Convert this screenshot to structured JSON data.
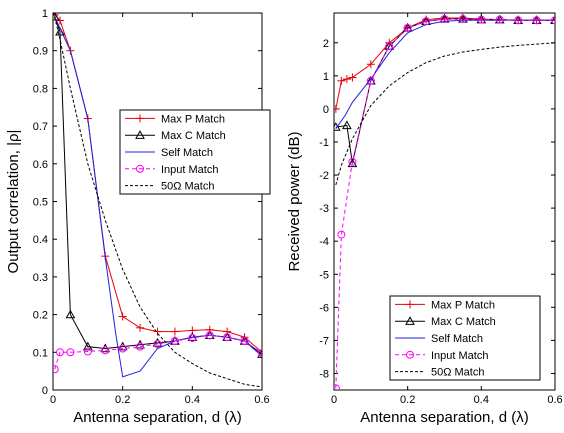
{
  "chart_data": [
    {
      "type": "line",
      "xlabel": "Antenna separation, d (λ)",
      "ylabel": "Output correlation, |ρ|",
      "xlim": [
        0,
        0.6
      ],
      "ylim": [
        0,
        1
      ],
      "xticks": [
        0,
        0.2,
        0.4,
        0.6
      ],
      "xtick_labels": [
        "0",
        "0.2",
        "0.4",
        "0.6"
      ],
      "yticks": [
        0,
        0.1,
        0.2,
        0.3,
        0.4,
        0.5,
        0.6,
        0.7,
        0.8,
        0.9,
        1
      ],
      "ytick_labels": [
        "0",
        "0.1",
        "0.2",
        "0.3",
        "0.4",
        "0.5",
        "0.6",
        "0.7",
        "0.8",
        "0.9",
        "1"
      ],
      "grid": false,
      "legend_position": "center-right",
      "series": [
        {
          "name": "Max P Match",
          "color": "#e8000b",
          "dash": "solid",
          "marker": "plus",
          "x": [
            0.005,
            0.02,
            0.05,
            0.1,
            0.15,
            0.2,
            0.25,
            0.3,
            0.35,
            0.4,
            0.45,
            0.5,
            0.55,
            0.6
          ],
          "y": [
            0.995,
            0.98,
            0.9,
            0.72,
            0.355,
            0.195,
            0.165,
            0.155,
            0.155,
            0.158,
            0.16,
            0.155,
            0.14,
            0.1
          ]
        },
        {
          "name": "Max C Match",
          "color": "#000000",
          "dash": "solid",
          "marker": "triangle",
          "x": [
            0.005,
            0.02,
            0.05,
            0.1,
            0.15,
            0.2,
            0.25,
            0.3,
            0.35,
            0.4,
            0.45,
            0.5,
            0.55,
            0.6
          ],
          "y": [
            0.99,
            0.95,
            0.2,
            0.115,
            0.11,
            0.115,
            0.12,
            0.125,
            0.13,
            0.14,
            0.145,
            0.14,
            0.13,
            0.095
          ]
        },
        {
          "name": "Self Match",
          "color": "#2020e0",
          "dash": "solid",
          "marker": "none",
          "x": [
            0.005,
            0.05,
            0.1,
            0.15,
            0.18,
            0.2,
            0.25,
            0.3,
            0.35,
            0.4,
            0.45,
            0.5,
            0.55,
            0.6
          ],
          "y": [
            0.99,
            0.9,
            0.72,
            0.35,
            0.15,
            0.035,
            0.05,
            0.11,
            0.13,
            0.14,
            0.145,
            0.14,
            0.13,
            0.09
          ]
        },
        {
          "name": "Input Match",
          "color": "#ff00ff",
          "dash": "dashed",
          "marker": "circle",
          "x": [
            0.005,
            0.02,
            0.05,
            0.1,
            0.15,
            0.2,
            0.25,
            0.3,
            0.35,
            0.4,
            0.45,
            0.5,
            0.55,
            0.6
          ],
          "y": [
            0.055,
            0.1,
            0.1,
            0.102,
            0.105,
            0.11,
            0.115,
            0.122,
            0.13,
            0.138,
            0.145,
            0.14,
            0.13,
            0.098
          ]
        },
        {
          "name": "50Ω Match",
          "color": "#000000",
          "dash": "dotted",
          "marker": "none",
          "x": [
            0.005,
            0.02,
            0.05,
            0.1,
            0.15,
            0.2,
            0.25,
            0.3,
            0.35,
            0.4,
            0.45,
            0.5,
            0.55,
            0.6
          ],
          "y": [
            0.99,
            0.93,
            0.8,
            0.6,
            0.45,
            0.32,
            0.22,
            0.15,
            0.1,
            0.07,
            0.045,
            0.03,
            0.015,
            0.008
          ]
        }
      ]
    },
    {
      "type": "line",
      "xlabel": "Antenna separation, d (λ)",
      "ylabel": "Received power (dB)",
      "xlim": [
        0,
        0.6
      ],
      "ylim": [
        -8.5,
        2.9
      ],
      "xticks": [
        0,
        0.2,
        0.4,
        0.6
      ],
      "xtick_labels": [
        "0",
        "0.2",
        "0.4",
        "0.6"
      ],
      "yticks": [
        -8,
        -7,
        -6,
        -5,
        -4,
        -3,
        -2,
        -1,
        0,
        1,
        2
      ],
      "ytick_labels": [
        "-8",
        "-7",
        "-6",
        "-5",
        "-4",
        "-3",
        "-2",
        "-1",
        "0",
        "1",
        "2"
      ],
      "grid": false,
      "legend_position": "bottom-right",
      "series": [
        {
          "name": "Max P Match",
          "color": "#e8000b",
          "dash": "solid",
          "marker": "plus",
          "x": [
            0.005,
            0.02,
            0.035,
            0.05,
            0.1,
            0.15,
            0.2,
            0.25,
            0.3,
            0.35,
            0.4,
            0.45,
            0.5,
            0.55,
            0.6
          ],
          "y": [
            0,
            0.85,
            0.9,
            0.95,
            1.35,
            2.0,
            2.45,
            2.7,
            2.75,
            2.75,
            2.72,
            2.7,
            2.68,
            2.68,
            2.68
          ]
        },
        {
          "name": "Max C Match",
          "color": "#000000",
          "dash": "solid",
          "marker": "triangle",
          "x": [
            0.005,
            0.035,
            0.05,
            0.1,
            0.15,
            0.2,
            0.25,
            0.3,
            0.35,
            0.4,
            0.45,
            0.5,
            0.55,
            0.6
          ],
          "y": [
            -0.55,
            -0.5,
            -1.65,
            0.85,
            1.9,
            2.45,
            2.65,
            2.72,
            2.72,
            2.7,
            2.7,
            2.68,
            2.68,
            2.68
          ]
        },
        {
          "name": "Self Match",
          "color": "#2020e0",
          "dash": "solid",
          "marker": "none",
          "x": [
            0.005,
            0.03,
            0.05,
            0.1,
            0.15,
            0.2,
            0.25,
            0.3,
            0.35,
            0.4,
            0.45,
            0.5,
            0.55,
            0.6
          ],
          "y": [
            -0.6,
            -0.2,
            0.2,
            0.9,
            1.7,
            2.3,
            2.55,
            2.65,
            2.68,
            2.68,
            2.68,
            2.68,
            2.68,
            2.68
          ]
        },
        {
          "name": "Input Match",
          "color": "#ff00ff",
          "dash": "dashed",
          "marker": "circle",
          "x": [
            0.005,
            0.02,
            0.05,
            0.1,
            0.15,
            0.2,
            0.25,
            0.3,
            0.35,
            0.4,
            0.45,
            0.5,
            0.55,
            0.6
          ],
          "y": [
            -8.45,
            -3.8,
            -1.6,
            0.85,
            1.9,
            2.45,
            2.65,
            2.72,
            2.72,
            2.7,
            2.7,
            2.68,
            2.68,
            2.68
          ]
        },
        {
          "name": "50Ω Match",
          "color": "#000000",
          "dash": "dotted",
          "marker": "none",
          "x": [
            0.005,
            0.02,
            0.05,
            0.1,
            0.15,
            0.2,
            0.25,
            0.3,
            0.35,
            0.4,
            0.45,
            0.5,
            0.55,
            0.6
          ],
          "y": [
            -2.3,
            -1.7,
            -0.9,
            0.1,
            0.7,
            1.1,
            1.4,
            1.6,
            1.72,
            1.8,
            1.87,
            1.92,
            1.96,
            2.0
          ]
        }
      ]
    }
  ]
}
